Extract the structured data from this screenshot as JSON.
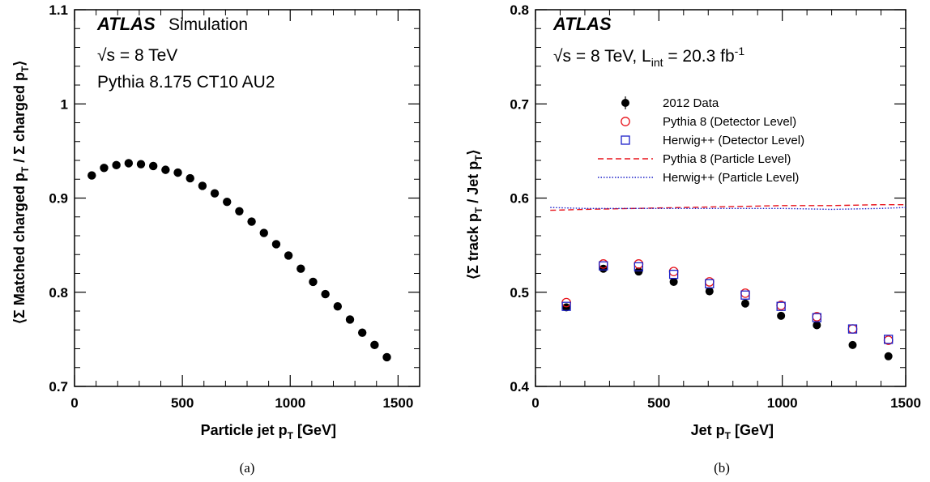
{
  "chart_data": [
    {
      "type": "scatter",
      "panel_caption": "(a)",
      "atlas_label": "ATLAS",
      "atlas_suffix": "Simulation",
      "energy_label": "√s = 8 TeV",
      "generator_label": "Pythia 8.175 CT10 AU2",
      "xlabel": "Particle jet p_T [GeV]",
      "ylabel": "⟨Σ Matched charged p_T / Σ charged p_T⟩",
      "xlim": [
        0,
        1600
      ],
      "ylim": [
        0.7,
        1.1
      ],
      "xticks": [
        "0",
        "500",
        "1000",
        "1500"
      ],
      "yticks": [
        "0.7",
        "0.8",
        "0.9",
        "1",
        "1.1"
      ],
      "series": [
        {
          "x": [
            80,
            137,
            194,
            251,
            308,
            365,
            422,
            479,
            536,
            593,
            650,
            707,
            764,
            821,
            878,
            935,
            992,
            1049,
            1106,
            1163,
            1220,
            1277,
            1334,
            1391,
            1448
          ],
          "y": [
            0.924,
            0.932,
            0.935,
            0.937,
            0.936,
            0.934,
            0.93,
            0.927,
            0.921,
            0.913,
            0.905,
            0.896,
            0.886,
            0.875,
            0.863,
            0.851,
            0.839,
            0.825,
            0.811,
            0.798,
            0.785,
            0.771,
            0.757,
            0.744,
            0.731
          ]
        }
      ]
    },
    {
      "type": "scatter",
      "panel_caption": "(b)",
      "atlas_label": "ATLAS",
      "energy_lumi_label": "√s = 8 TeV, L_int = 20.3 fb^-1",
      "xlabel": "Jet p_T [GeV]",
      "ylabel": "⟨Σ track p_T / Jet p_T⟩",
      "xlim": [
        0,
        1500
      ],
      "ylim": [
        0.4,
        0.8
      ],
      "xticks": [
        "0",
        "500",
        "1000",
        "1500"
      ],
      "yticks": [
        "0.4",
        "0.5",
        "0.6",
        "0.7",
        "0.8"
      ],
      "legend_position": "top-center",
      "series": [
        {
          "name": "2012 Data",
          "marker": "filled-circle",
          "color": "#000000",
          "x": [
            125,
            275,
            418,
            560,
            705,
            850,
            995,
            1140,
            1285,
            1430
          ],
          "y": [
            0.484,
            0.525,
            0.522,
            0.511,
            0.501,
            0.488,
            0.475,
            0.465,
            0.444,
            0.432
          ]
        },
        {
          "name": "Pythia 8 (Detector Level)",
          "marker": "open-circle",
          "color": "#e8141c",
          "x": [
            125,
            275,
            418,
            560,
            705,
            850,
            995,
            1140,
            1285,
            1430
          ],
          "y": [
            0.489,
            0.53,
            0.53,
            0.522,
            0.511,
            0.499,
            0.486,
            0.474,
            0.461,
            0.449
          ]
        },
        {
          "name": "Herwig++ (Detector Level)",
          "marker": "open-square",
          "color": "#1c20c8",
          "x": [
            125,
            275,
            418,
            560,
            705,
            850,
            995,
            1140,
            1285,
            1430
          ],
          "y": [
            0.485,
            0.528,
            0.527,
            0.519,
            0.509,
            0.497,
            0.485,
            0.473,
            0.461,
            0.45
          ]
        },
        {
          "name": "Pythia 8 (Particle Level)",
          "line": "dashed",
          "color": "#e8141c",
          "x": [
            60,
            200,
            400,
            600,
            800,
            1000,
            1200,
            1400,
            1500
          ],
          "y": [
            0.587,
            0.588,
            0.589,
            0.59,
            0.591,
            0.592,
            0.592,
            0.593,
            0.593
          ]
        },
        {
          "name": "Herwig++ (Particle Level)",
          "line": "dotted",
          "color": "#1c20c8",
          "x": [
            60,
            200,
            400,
            600,
            800,
            1000,
            1200,
            1400,
            1500
          ],
          "y": [
            0.59,
            0.589,
            0.589,
            0.589,
            0.589,
            0.589,
            0.588,
            0.589,
            0.59
          ]
        }
      ]
    }
  ]
}
